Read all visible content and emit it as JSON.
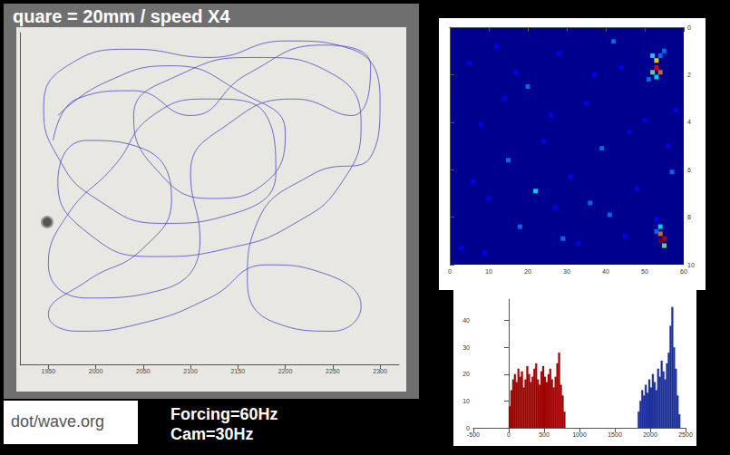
{
  "captions": {
    "title": "quare = 20mm / speed X4",
    "logo": "dot/wave.org",
    "forcing": "Forcing=60Hz",
    "camera": "Cam=30Hz"
  },
  "chart_data": [
    {
      "type": "line",
      "color": "#4b4bc8",
      "x": [
        1960,
        2010,
        2080,
        2150,
        2200,
        2180,
        2120,
        2060,
        2040,
        2090,
        2170,
        2250,
        2280,
        2260,
        2210,
        2140,
        2060,
        1990,
        1960,
        1990,
        2050,
        2080,
        2050,
        1990,
        1950,
        1980,
        2050,
        2120,
        2180,
        2240,
        2280,
        2250,
        2190,
        2160,
        2170,
        2230,
        2290,
        2300,
        2270,
        2200,
        2120,
        2040,
        1970,
        1945,
        1960,
        2000,
        2070,
        2140,
        2190,
        2180,
        2120,
        2060,
        2020,
        1970,
        1950,
        1990,
        2070,
        2110,
        2100,
        2140,
        2210,
        2270,
        2290,
        2240,
        2160,
        2100,
        2040,
        1980,
        1955
      ],
      "values": [
        300,
        340,
        360,
        330,
        280,
        220,
        200,
        240,
        300,
        350,
        370,
        350,
        290,
        220,
        170,
        140,
        130,
        160,
        220,
        270,
        260,
        200,
        140,
        100,
        60,
        40,
        50,
        80,
        120,
        110,
        70,
        40,
        50,
        100,
        170,
        230,
        250,
        320,
        380,
        390,
        370,
        380,
        360,
        310,
        250,
        200,
        170,
        180,
        230,
        300,
        320,
        300,
        240,
        180,
        120,
        80,
        90,
        150,
        230,
        290,
        320,
        300,
        360,
        385,
        350,
        300,
        330,
        320,
        270
      ],
      "xlim": [
        1920,
        2320
      ],
      "xticks": [
        1950,
        2000,
        2050,
        2100,
        2150,
        2200,
        2250,
        2300
      ],
      "ylim": [
        0,
        400
      ],
      "tick_labels": "x",
      "grid": false
    },
    {
      "type": "heatmap",
      "cells": [
        [
          52,
          1.2,
          4
        ],
        [
          53,
          1.4,
          6
        ],
        [
          54,
          1.2,
          3
        ],
        [
          53,
          1.7,
          8
        ],
        [
          52,
          1.9,
          5
        ],
        [
          54,
          1.9,
          7
        ],
        [
          53,
          2.1,
          4
        ],
        [
          55,
          1.0,
          3
        ],
        [
          51,
          2.2,
          3
        ],
        [
          54,
          8.4,
          4
        ],
        [
          54,
          8.7,
          7
        ],
        [
          55,
          8.9,
          9
        ],
        [
          54,
          9.0,
          10
        ],
        [
          53,
          8.6,
          3
        ],
        [
          55,
          9.2,
          5
        ],
        [
          53,
          8.1,
          2
        ],
        [
          5,
          1.5,
          2
        ],
        [
          12,
          0.8,
          2
        ],
        [
          20,
          2.5,
          3
        ],
        [
          28,
          1.1,
          2
        ],
        [
          35,
          3.2,
          2
        ],
        [
          42,
          0.6,
          3
        ],
        [
          8,
          4.1,
          2
        ],
        [
          15,
          5.6,
          3
        ],
        [
          24,
          4.8,
          2
        ],
        [
          31,
          6.3,
          2
        ],
        [
          39,
          5.1,
          3
        ],
        [
          46,
          4.4,
          2
        ],
        [
          10,
          7.2,
          2
        ],
        [
          18,
          8.4,
          3
        ],
        [
          27,
          7.6,
          2
        ],
        [
          33,
          9.1,
          2
        ],
        [
          41,
          7.9,
          3
        ],
        [
          48,
          6.8,
          2
        ],
        [
          3,
          9.3,
          2
        ],
        [
          22,
          6.9,
          4
        ],
        [
          37,
          2.0,
          2
        ],
        [
          45,
          8.8,
          2
        ],
        [
          58,
          3.5,
          2
        ],
        [
          57,
          6.1,
          3
        ],
        [
          6,
          6.5,
          2
        ],
        [
          14,
          3.0,
          2
        ],
        [
          29,
          8.9,
          3
        ],
        [
          50,
          3.9,
          2
        ],
        [
          36,
          7.4,
          3
        ],
        [
          17,
          1.9,
          2
        ],
        [
          44,
          1.7,
          2
        ],
        [
          26,
          3.7,
          2
        ],
        [
          9,
          9.5,
          2
        ],
        [
          56,
          5.0,
          2
        ]
      ],
      "color_range": [
        0,
        10
      ],
      "xlim": [
        0,
        60
      ],
      "xticks": [
        0,
        10,
        20,
        30,
        40,
        50,
        60
      ],
      "ylim": [
        0,
        10
      ],
      "yticks": [
        0,
        2,
        4,
        6,
        8,
        10
      ],
      "grid": false
    },
    {
      "type": "histogram",
      "series": [
        {
          "color": "#a00000",
          "bins": [
            0,
            25,
            50,
            75,
            100,
            125,
            150,
            175,
            200,
            225,
            250,
            275,
            300,
            325,
            350,
            375,
            400,
            425,
            450,
            475,
            500,
            525,
            550,
            575,
            600,
            625,
            650,
            675,
            700,
            725,
            750,
            775,
            800
          ],
          "counts": [
            8,
            14,
            18,
            20,
            17,
            22,
            19,
            21,
            15,
            18,
            23,
            20,
            17,
            19,
            22,
            24,
            18,
            16,
            21,
            23,
            19,
            17,
            20,
            22,
            18,
            15,
            19,
            24,
            28,
            16,
            12,
            6
          ]
        },
        {
          "color": "#1c2f9e",
          "bins": [
            1825,
            1850,
            1875,
            1900,
            1925,
            1950,
            1975,
            2000,
            2025,
            2050,
            2075,
            2100,
            2125,
            2150,
            2175,
            2200,
            2225,
            2250,
            2275,
            2300,
            2325,
            2350,
            2375,
            2400,
            2425
          ],
          "counts": [
            6,
            10,
            14,
            12,
            16,
            13,
            18,
            15,
            20,
            17,
            14,
            22,
            19,
            25,
            21,
            18,
            24,
            28,
            38,
            45,
            30,
            22,
            12,
            5
          ]
        }
      ],
      "xlim": [
        -500,
        2500
      ],
      "xticks": [
        -500,
        0,
        500,
        1000,
        1500,
        2000,
        2500
      ],
      "ylim": [
        0,
        48
      ],
      "yticks": [
        0,
        10,
        20,
        30,
        40
      ],
      "grid": false
    }
  ]
}
